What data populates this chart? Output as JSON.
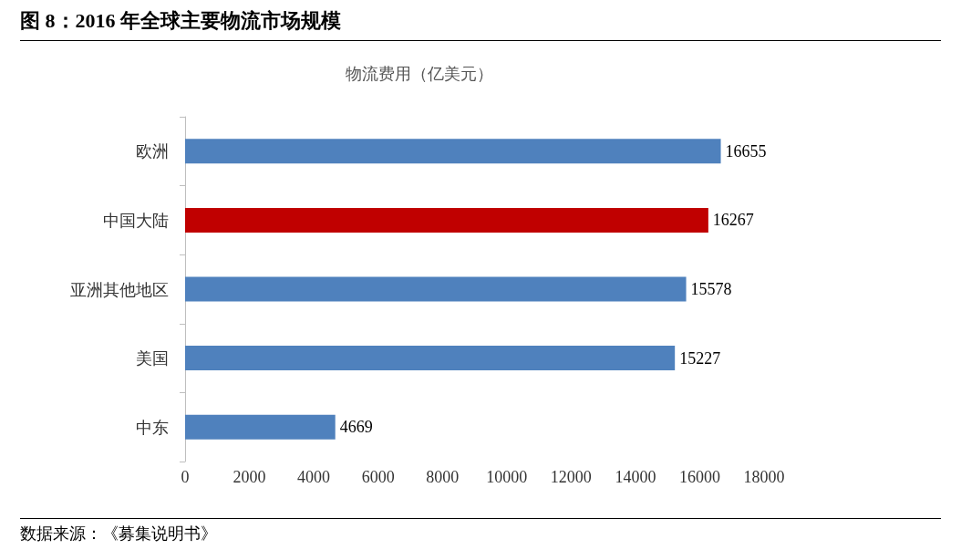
{
  "chart_data": {
    "type": "bar",
    "orientation": "horizontal",
    "title": "图 8：2016 年全球主要物流市场规模",
    "subtitle": "物流费用（亿美元）",
    "categories": [
      "欧洲",
      "中国大陆",
      "亚洲其他地区",
      "美国",
      "中东"
    ],
    "values": [
      16655,
      16267,
      15578,
      15227,
      4669
    ],
    "colors": [
      "#4f81bd",
      "#c00000",
      "#4f81bd",
      "#4f81bd",
      "#4f81bd"
    ],
    "xlim": [
      0,
      18000
    ],
    "xticks": [
      0,
      2000,
      4000,
      6000,
      8000,
      10000,
      12000,
      14000,
      16000,
      18000
    ],
    "data_labels": true,
    "grid": false,
    "annotations": [
      "数据来源：《募集说明书》"
    ]
  }
}
